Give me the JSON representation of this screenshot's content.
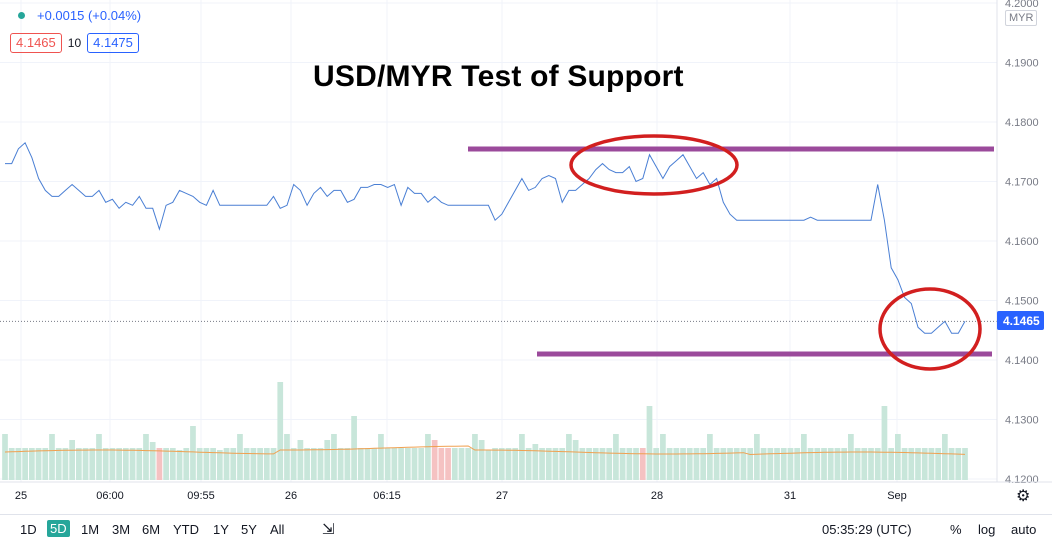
{
  "legend": {
    "change": "+0.0015 (+0.04%)",
    "bid": "4.1465",
    "spread": "10",
    "ask": "4.1475"
  },
  "currency": "MYR",
  "annotation_title": "USD/MYR Test of Support",
  "price_label": "4.1465",
  "colors": {
    "line": "#4a7fd4",
    "support": "#9b4a9b",
    "circle": "#d21f1f",
    "volume_up": "#c8e6da",
    "volume_down": "#f5c2c2",
    "ma": "#f0a050",
    "price_tag": "#2962ff"
  },
  "chart_data": {
    "type": "line",
    "title": "USD/MYR Test of Support",
    "ylim": [
      4.1195,
      4.2005
    ],
    "y_ticks": [
      "4.2000",
      "4.1900",
      "4.1800",
      "4.1700",
      "4.1600",
      "4.1500",
      "4.1400",
      "4.1300",
      "4.1200"
    ],
    "x_ticks": [
      "25",
      "06:00",
      "09:55",
      "26",
      "06:15",
      "27",
      "28",
      "31",
      "Sep"
    ],
    "grid": true,
    "last_price": 4.1465,
    "series": [
      {
        "values": [
          4.173,
          4.173,
          4.1755,
          4.1765,
          4.174,
          4.1705,
          4.1685,
          4.1675,
          4.1675,
          4.1685,
          4.1695,
          4.1685,
          4.1675,
          4.1675,
          4.1685,
          4.1665,
          4.167,
          4.1655,
          4.1665,
          4.166,
          4.1675,
          4.1655,
          4.1655,
          4.162,
          4.166,
          4.1665,
          4.1685,
          4.168,
          4.1675,
          4.1665,
          4.166,
          4.1685,
          4.166,
          4.166,
          4.166,
          4.166,
          4.166,
          4.166,
          4.166,
          4.166,
          4.1675,
          4.1655,
          4.166,
          4.1695,
          4.1685,
          4.166,
          4.168,
          4.169,
          4.1675,
          4.1685,
          4.1685,
          4.1665,
          4.167,
          4.169,
          4.169,
          4.1695,
          4.1695,
          4.169,
          4.1695,
          4.166,
          4.169,
          4.168,
          4.168,
          4.1665,
          4.1675,
          4.1665,
          4.166,
          4.166,
          4.166,
          4.166,
          4.166,
          4.166,
          4.166,
          4.1635,
          4.1645,
          4.1665,
          4.1685,
          4.1705,
          4.1685,
          4.169,
          4.1705,
          4.171,
          4.1705,
          4.1665,
          4.1685,
          4.1685,
          4.1695,
          4.1705,
          4.172,
          4.173,
          4.172,
          4.1715,
          4.1715,
          4.1725,
          4.17,
          4.1705,
          4.1745,
          4.1725,
          4.1705,
          4.1725,
          4.1735,
          4.1745,
          4.1725,
          4.1705,
          4.1715,
          4.1695,
          4.1705,
          4.1665,
          4.1645,
          4.1635,
          4.1635,
          4.1635,
          4.1635,
          4.1635,
          4.1635,
          4.1635,
          4.1635,
          4.1635,
          4.1635,
          4.1635,
          4.164,
          4.1635,
          4.1635,
          4.1635,
          4.1635,
          4.1635,
          4.1635,
          4.1635,
          4.1635,
          4.1635,
          4.1695,
          4.1635,
          4.1555,
          4.1535,
          4.1505,
          4.1495,
          4.1455,
          4.1445,
          4.1445,
          4.1455,
          4.1465,
          4.1445,
          4.1445,
          4.1465
        ]
      }
    ],
    "volume": [
      4,
      4,
      4,
      4,
      4,
      4,
      4,
      4,
      4,
      4,
      9,
      4,
      4,
      4,
      4,
      4,
      4,
      4,
      4,
      4,
      4,
      4,
      4,
      4,
      4,
      4,
      4,
      4,
      5,
      4,
      4,
      4,
      5,
      4,
      4,
      4,
      4,
      4,
      4,
      4,
      4,
      4,
      4,
      4,
      5,
      4,
      4,
      4,
      5,
      4,
      4,
      4,
      4,
      4,
      4,
      4,
      4,
      4,
      4,
      4,
      4,
      4,
      4,
      4,
      5,
      4,
      4,
      4,
      4,
      4,
      4,
      5,
      4,
      4,
      4,
      4,
      4,
      4,
      4,
      4,
      4,
      4,
      4,
      4,
      4,
      4,
      4,
      4,
      4,
      4,
      4,
      4,
      4,
      4,
      4,
      4,
      4,
      4,
      4,
      4,
      4,
      4,
      4,
      4,
      4,
      4,
      4,
      4,
      4,
      4,
      4,
      4,
      4,
      4,
      4,
      4,
      4,
      4,
      4,
      4,
      4,
      4,
      4,
      4,
      4,
      4,
      4,
      4,
      4,
      4,
      4,
      4,
      4,
      4,
      4,
      4,
      4,
      4,
      4,
      4,
      4,
      4,
      4,
      4,
      4,
      4,
      4,
      4,
      4,
      4,
      4,
      4,
      4,
      4,
      4,
      4,
      4,
      4,
      4,
      4,
      4
    ],
    "volume_down": [
      23,
      64,
      65,
      66,
      95
    ]
  },
  "toolbar": {
    "ranges": [
      "1D",
      "5D",
      "1M",
      "3M",
      "6M",
      "YTD",
      "1Y",
      "5Y",
      "All"
    ],
    "active": "5D",
    "time": "05:35:29 (UTC)",
    "pct": "%",
    "log": "log",
    "auto": "auto"
  }
}
